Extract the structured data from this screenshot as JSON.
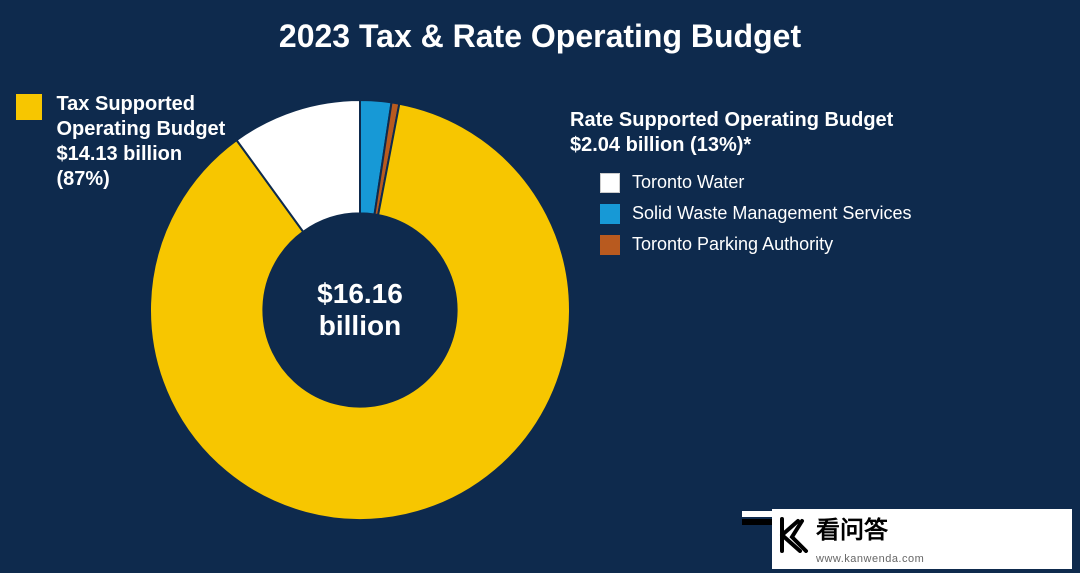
{
  "title": "2023 Tax & Rate Operating Budget",
  "background_color": "#0e2a4d",
  "text_color": "#ffffff",
  "chart": {
    "type": "donut",
    "center_label_line1": "$16.16",
    "center_label_line2": "billion",
    "center_fontsize": 28,
    "inner_radius_pct": 46,
    "outer_radius_pct": 100,
    "start_angle_deg": -90,
    "slices": [
      {
        "name": "Solid Waste Management Services",
        "value": 2.4,
        "color": "#1799d6"
      },
      {
        "name": "Toronto Parking Authority",
        "value": 0.6,
        "color": "#b85a1f"
      },
      {
        "name": "Tax Supported Operating Budget",
        "value": 87.0,
        "color": "#f7c600"
      },
      {
        "name": "Toronto Water",
        "value": 10.0,
        "color": "#ffffff"
      }
    ],
    "gap_stroke": "#0e2a4d",
    "gap_width": 2
  },
  "left_legend": {
    "swatch_color": "#f7c600",
    "swatch_size": 26,
    "line1": "Tax Supported",
    "line2": "Operating Budget",
    "line3": "$14.13 billion",
    "line4": "(87%)",
    "fontsize": 20,
    "fontweight": "bold"
  },
  "right_block": {
    "title_line1": "Rate Supported Operating Budget",
    "title_line2": "$2.04 billion (13%)*",
    "title_fontsize": 20,
    "items": [
      {
        "label": "Toronto Water",
        "color": "#ffffff",
        "border": "#cccccc"
      },
      {
        "label": "Solid Waste Management Services",
        "color": "#1799d6",
        "border": "#1799d6"
      },
      {
        "label": "Toronto Parking Authority",
        "color": "#b85a1f",
        "border": "#b85a1f"
      }
    ],
    "label_fontsize": 18
  },
  "watermark": {
    "main": "看问答",
    "sub": "www.kanwenda.com"
  }
}
